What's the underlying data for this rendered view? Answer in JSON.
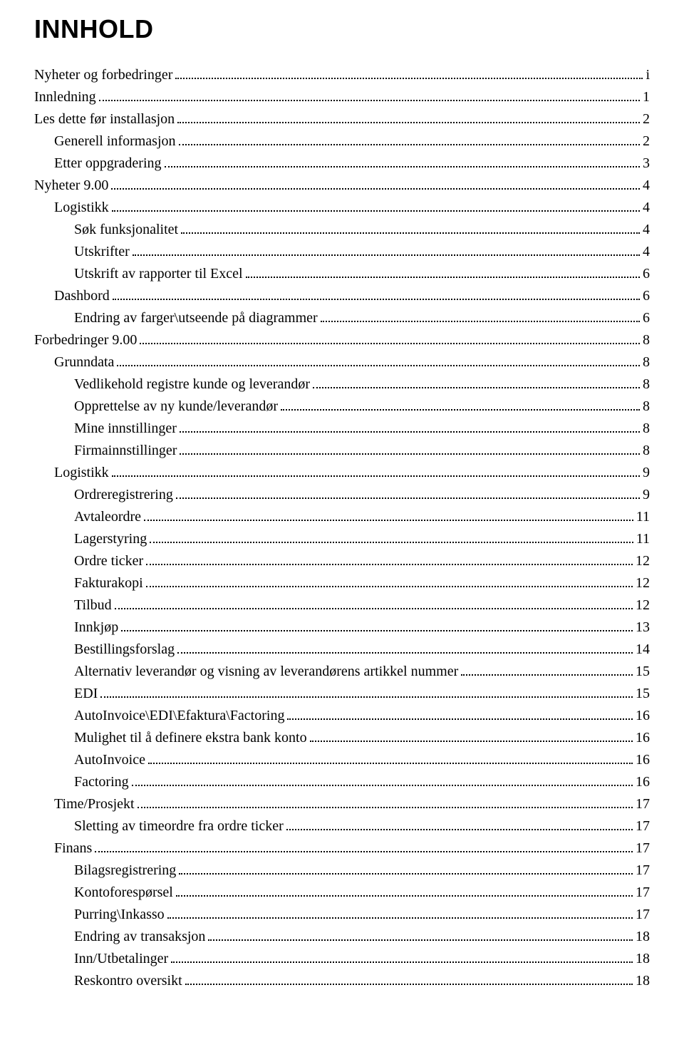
{
  "title": "INNHOLD",
  "colors": {
    "text": "#000000",
    "background": "#ffffff",
    "dots": "#000000"
  },
  "typography": {
    "title_font": "Arial",
    "title_size_pt": 27,
    "title_weight": 900,
    "body_font": "Times New Roman",
    "body_size_pt": 15
  },
  "entries": [
    {
      "label": "Nyheter og forbedringer",
      "page": "i",
      "level": 0
    },
    {
      "label": "Innledning",
      "page": "1",
      "level": 0
    },
    {
      "label": "Les dette før installasjon",
      "page": "2",
      "level": 0
    },
    {
      "label": "Generell informasjon",
      "page": "2",
      "level": 1
    },
    {
      "label": "Etter oppgradering",
      "page": "3",
      "level": 1
    },
    {
      "label": "Nyheter 9.00",
      "page": "4",
      "level": 0
    },
    {
      "label": "Logistikk",
      "page": "4",
      "level": 1
    },
    {
      "label": "Søk funksjonalitet",
      "page": "4",
      "level": 2
    },
    {
      "label": "Utskrifter",
      "page": "4",
      "level": 2
    },
    {
      "label": "Utskrift av rapporter til Excel",
      "page": "6",
      "level": 2
    },
    {
      "label": "Dashbord",
      "page": "6",
      "level": 1
    },
    {
      "label": "Endring av farger\\utseende på diagrammer",
      "page": "6",
      "level": 2
    },
    {
      "label": "Forbedringer 9.00",
      "page": "8",
      "level": 0
    },
    {
      "label": "Grunndata",
      "page": "8",
      "level": 1
    },
    {
      "label": "Vedlikehold registre kunde og leverandør",
      "page": "8",
      "level": 2
    },
    {
      "label": "Opprettelse av ny kunde/leverandør",
      "page": "8",
      "level": 2
    },
    {
      "label": "Mine innstillinger",
      "page": "8",
      "level": 2
    },
    {
      "label": "Firmainnstillinger",
      "page": "8",
      "level": 2
    },
    {
      "label": "Logistikk",
      "page": "9",
      "level": 1
    },
    {
      "label": "Ordreregistrering",
      "page": "9",
      "level": 2
    },
    {
      "label": "Avtaleordre",
      "page": "11",
      "level": 2
    },
    {
      "label": "Lagerstyring",
      "page": "11",
      "level": 2
    },
    {
      "label": "Ordre ticker",
      "page": "12",
      "level": 2
    },
    {
      "label": "Fakturakopi",
      "page": "12",
      "level": 2
    },
    {
      "label": "Tilbud",
      "page": "12",
      "level": 2
    },
    {
      "label": "Innkjøp",
      "page": "13",
      "level": 2
    },
    {
      "label": "Bestillingsforslag",
      "page": "14",
      "level": 2
    },
    {
      "label": "Alternativ leverandør og visning av leverandørens artikkel nummer",
      "page": "15",
      "level": 2
    },
    {
      "label": "EDI",
      "page": "15",
      "level": 2
    },
    {
      "label": "AutoInvoice\\EDI\\Efaktura\\Factoring",
      "page": "16",
      "level": 2
    },
    {
      "label": "Mulighet til å definere ekstra bank konto",
      "page": "16",
      "level": 2
    },
    {
      "label": "AutoInvoice",
      "page": "16",
      "level": 2
    },
    {
      "label": "Factoring",
      "page": "16",
      "level": 2
    },
    {
      "label": "Time/Prosjekt",
      "page": "17",
      "level": 1
    },
    {
      "label": "Sletting av timeordre fra ordre ticker",
      "page": "17",
      "level": 2
    },
    {
      "label": "Finans",
      "page": "17",
      "level": 1
    },
    {
      "label": "Bilagsregistrering",
      "page": "17",
      "level": 2
    },
    {
      "label": "Kontoforespørsel",
      "page": "17",
      "level": 2
    },
    {
      "label": "Purring\\Inkasso",
      "page": "17",
      "level": 2
    },
    {
      "label": "Endring av transaksjon",
      "page": "18",
      "level": 2
    },
    {
      "label": "Inn/Utbetalinger",
      "page": "18",
      "level": 2
    },
    {
      "label": "Reskontro oversikt",
      "page": "18",
      "level": 2
    }
  ]
}
